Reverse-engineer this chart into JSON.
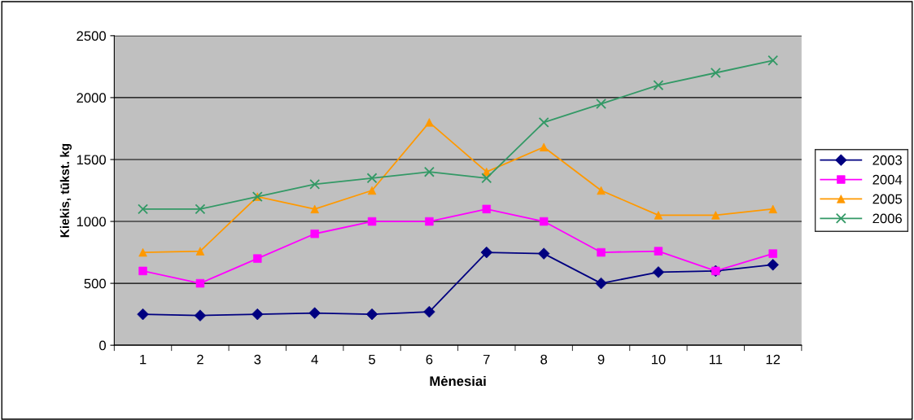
{
  "chart_data": {
    "type": "line",
    "xlabel": "Mėnesiai",
    "ylabel": "Kiekis, tūkst. kg",
    "categories": [
      "1",
      "2",
      "3",
      "4",
      "5",
      "6",
      "7",
      "8",
      "9",
      "10",
      "11",
      "12"
    ],
    "series": [
      {
        "name": "2003",
        "color": "#000080",
        "marker": "diamond",
        "values": [
          250,
          240,
          250,
          260,
          250,
          270,
          750,
          740,
          500,
          590,
          600,
          650
        ]
      },
      {
        "name": "2004",
        "color": "#ff00ff",
        "marker": "square",
        "values": [
          600,
          500,
          700,
          900,
          1000,
          1000,
          1100,
          1000,
          750,
          760,
          600,
          740
        ]
      },
      {
        "name": "2005",
        "color": "#ff9900",
        "marker": "triangle",
        "values": [
          750,
          760,
          1200,
          1100,
          1250,
          1800,
          1400,
          1600,
          1250,
          1050,
          1050,
          1100
        ]
      },
      {
        "name": "2006",
        "color": "#339966",
        "marker": "cross",
        "values": [
          1100,
          1100,
          1200,
          1300,
          1350,
          1400,
          1350,
          1800,
          1950,
          2100,
          2200,
          2300
        ]
      }
    ],
    "ylim": [
      0,
      2500
    ],
    "yticks": [
      0,
      500,
      1000,
      1500,
      2000,
      2500
    ],
    "grid": "y",
    "legend": "right"
  }
}
